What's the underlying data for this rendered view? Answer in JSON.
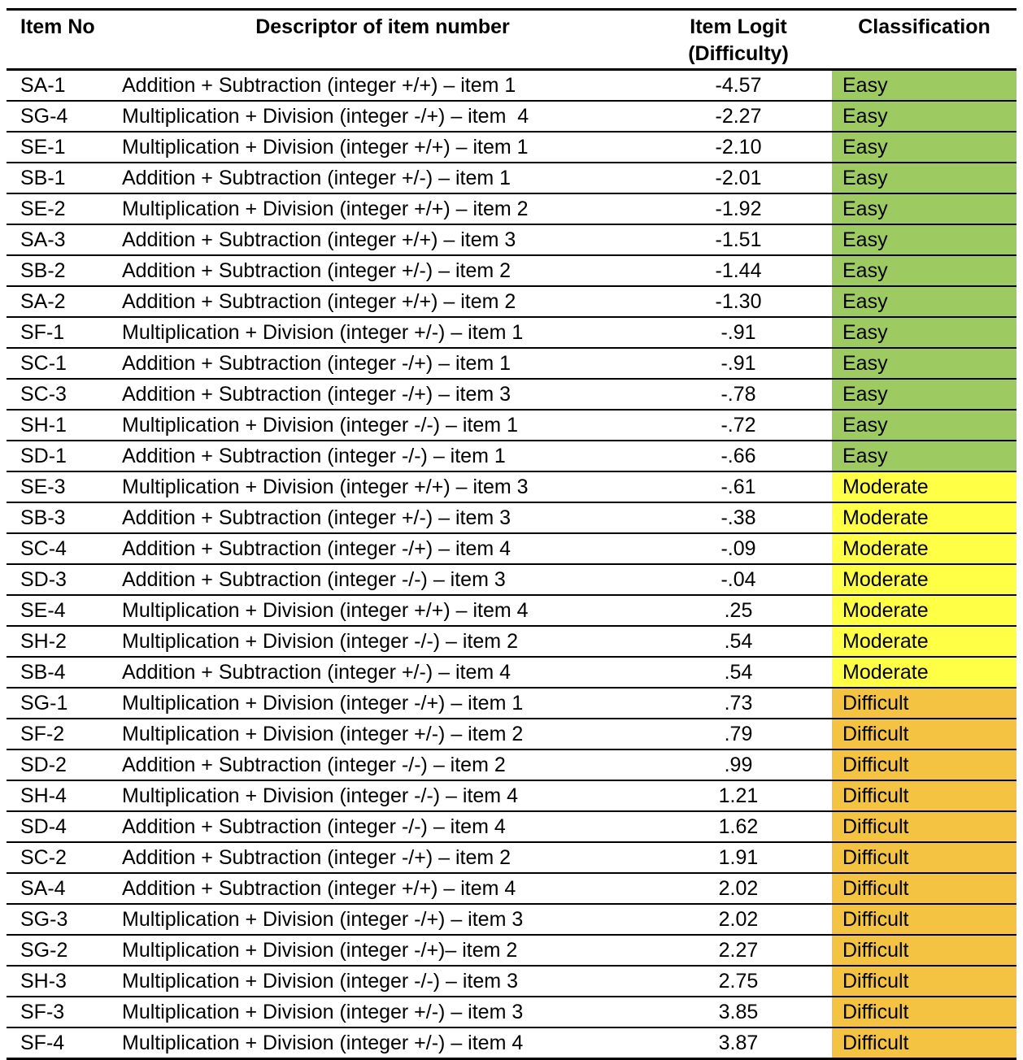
{
  "table": {
    "columns": {
      "item_no_label": "Item No",
      "descriptor_label": "Descriptor of item number",
      "logit_label_line1": "Item Logit",
      "logit_label_line2": "(Difficulty)",
      "classification_label": "Classification"
    },
    "rows": [
      {
        "item_no": "SA-1",
        "descriptor": "Addition + Subtraction (integer +/+) – item 1",
        "logit": "-4.57",
        "classification": "Easy"
      },
      {
        "item_no": "SG-4",
        "descriptor": "Multiplication + Division (integer -/+) – item  4",
        "logit": "-2.27",
        "classification": "Easy"
      },
      {
        "item_no": "SE-1",
        "descriptor": "Multiplication + Division (integer +/+) – item 1",
        "logit": "-2.10",
        "classification": "Easy"
      },
      {
        "item_no": "SB-1",
        "descriptor": "Addition + Subtraction (integer +/-) – item 1",
        "logit": "-2.01",
        "classification": "Easy"
      },
      {
        "item_no": "SE-2",
        "descriptor": "Multiplication + Division (integer +/+) – item 2",
        "logit": "-1.92",
        "classification": "Easy"
      },
      {
        "item_no": "SA-3",
        "descriptor": "Addition + Subtraction (integer +/+) – item 3",
        "logit": "-1.51",
        "classification": "Easy"
      },
      {
        "item_no": "SB-2",
        "descriptor": "Addition + Subtraction (integer +/-) – item 2",
        "logit": "-1.44",
        "classification": "Easy"
      },
      {
        "item_no": "SA-2",
        "descriptor": "Addition + Subtraction (integer +/+) – item 2",
        "logit": "-1.30",
        "classification": "Easy"
      },
      {
        "item_no": "SF-1",
        "descriptor": "Multiplication + Division (integer +/-) – item 1",
        "logit": "-.91",
        "classification": "Easy"
      },
      {
        "item_no": "SC-1",
        "descriptor": "Addition + Subtraction (integer -/+) – item 1",
        "logit": "-.91",
        "classification": "Easy"
      },
      {
        "item_no": "SC-3",
        "descriptor": "Addition + Subtraction (integer -/+) – item 3",
        "logit": "-.78",
        "classification": "Easy"
      },
      {
        "item_no": "SH-1",
        "descriptor": "Multiplication + Division (integer -/-) – item 1",
        "logit": "-.72",
        "classification": "Easy"
      },
      {
        "item_no": "SD-1",
        "descriptor": "Addition + Subtraction (integer -/-) – item 1",
        "logit": "-.66",
        "classification": "Easy"
      },
      {
        "item_no": "SE-3",
        "descriptor": "Multiplication + Division (integer +/+) – item 3",
        "logit": "-.61",
        "classification": "Moderate"
      },
      {
        "item_no": "SB-3",
        "descriptor": "Addition + Subtraction (integer +/-) – item 3",
        "logit": "-.38",
        "classification": "Moderate"
      },
      {
        "item_no": "SC-4",
        "descriptor": "Addition + Subtraction (integer -/+) – item 4",
        "logit": "-.09",
        "classification": "Moderate"
      },
      {
        "item_no": "SD-3",
        "descriptor": "Addition + Subtraction (integer -/-) – item 3",
        "logit": "-.04",
        "classification": "Moderate"
      },
      {
        "item_no": "SE-4",
        "descriptor": "Multiplication + Division (integer +/+) – item 4",
        "logit": ".25",
        "classification": "Moderate"
      },
      {
        "item_no": "SH-2",
        "descriptor": "Multiplication + Division (integer -/-) – item 2",
        "logit": ".54",
        "classification": "Moderate"
      },
      {
        "item_no": "SB-4",
        "descriptor": "Addition + Subtraction (integer +/-) – item 4",
        "logit": ".54",
        "classification": "Moderate"
      },
      {
        "item_no": "SG-1",
        "descriptor": "Multiplication + Division (integer -/+) – item 1",
        "logit": ".73",
        "classification": "Difficult"
      },
      {
        "item_no": "SF-2",
        "descriptor": "Multiplication + Division (integer +/-) – item 2",
        "logit": ".79",
        "classification": "Difficult"
      },
      {
        "item_no": "SD-2",
        "descriptor": "Addition + Subtraction (integer -/-) – item 2",
        "logit": ".99",
        "classification": "Difficult"
      },
      {
        "item_no": "SH-4",
        "descriptor": "Multiplication + Division (integer -/-) – item 4",
        "logit": "1.21",
        "classification": "Difficult"
      },
      {
        "item_no": "SD-4",
        "descriptor": "Addition + Subtraction (integer -/-) – item 4",
        "logit": "1.62",
        "classification": "Difficult"
      },
      {
        "item_no": "SC-2",
        "descriptor": "Addition + Subtraction (integer -/+) – item 2",
        "logit": "1.91",
        "classification": "Difficult"
      },
      {
        "item_no": "SA-4",
        "descriptor": "Addition + Subtraction (integer +/+) – item 4",
        "logit": "2.02",
        "classification": "Difficult"
      },
      {
        "item_no": "SG-3",
        "descriptor": "Multiplication + Division (integer -/+) – item 3",
        "logit": "2.02",
        "classification": "Difficult"
      },
      {
        "item_no": "SG-2",
        "descriptor": "Multiplication + Division (integer -/+)– item 2",
        "logit": "2.27",
        "classification": "Difficult"
      },
      {
        "item_no": "SH-3",
        "descriptor": "Multiplication + Division (integer -/-) – item 3",
        "logit": "2.75",
        "classification": "Difficult"
      },
      {
        "item_no": "SF-3",
        "descriptor": "Multiplication + Division (integer +/-) – item 3",
        "logit": "3.85",
        "classification": "Difficult"
      },
      {
        "item_no": "SF-4",
        "descriptor": "Multiplication + Division (integer +/-) – item 4",
        "logit": "3.87",
        "classification": "Difficult"
      }
    ]
  },
  "classification_colors": {
    "Easy": "#9DCB61",
    "Moderate": "#FFFF45",
    "Difficult": "#F5C342"
  }
}
